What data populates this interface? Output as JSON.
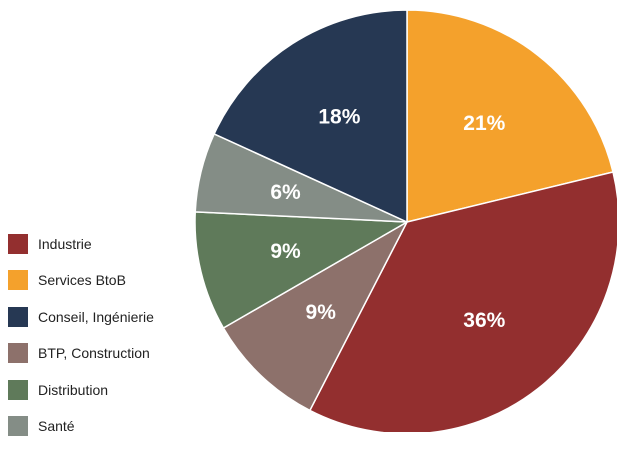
{
  "chart_data": {
    "type": "pie",
    "slices": [
      {
        "label": "Industrie",
        "value": 36,
        "value_text": "36%",
        "color": "#932f2f"
      },
      {
        "label": "Services BtoB",
        "value": 21,
        "value_text": "21%",
        "color": "#f4a12c"
      },
      {
        "label": "Conseil, Ingénierie",
        "value": 18,
        "value_text": "18%",
        "color": "#263853"
      },
      {
        "label": "BTP, Construction",
        "value": 9,
        "value_text": "9%",
        "color": "#8d716b"
      },
      {
        "label": "Distribution",
        "value": 9,
        "value_text": "9%",
        "color": "#5f7a5a"
      },
      {
        "label": "Santé",
        "value": 6,
        "value_text": "6%",
        "color": "#848d86"
      }
    ],
    "draw_order": [
      1,
      0,
      3,
      4,
      5,
      2
    ],
    "legend_position": "left"
  }
}
